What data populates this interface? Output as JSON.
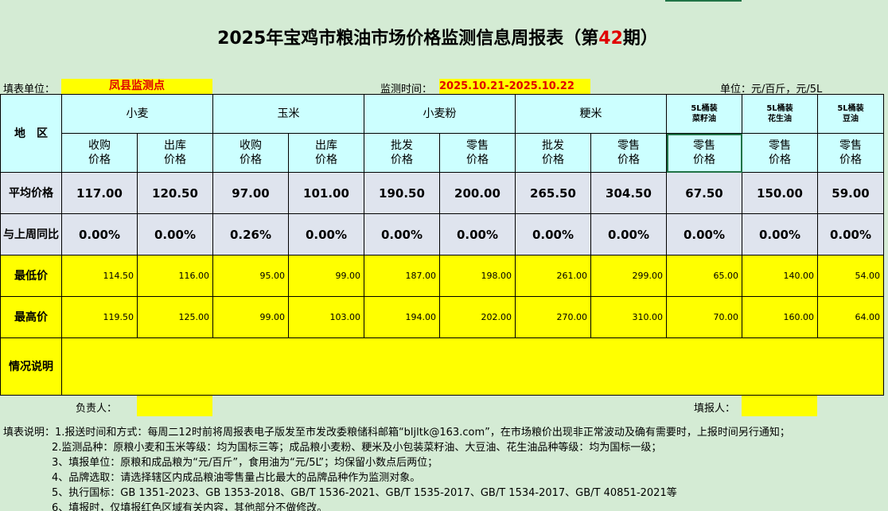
{
  "title": {
    "prefix": "2025年宝鸡市粮油市场价格监测信息周报表（第",
    "issue": "42",
    "suffix": "期）"
  },
  "info": {
    "unit_label": "填表单位：",
    "unit": "凤县监测点",
    "time_label": "监测时间：",
    "time": "2025.10.21-2025.10.22",
    "measure": "单位：元/百斤，元/5L"
  },
  "table": {
    "region_header": "地　区",
    "groups": [
      "小麦",
      "玉米",
      "小麦粉",
      "粳米",
      "5L桶装\n菜籽油",
      "5L桶装\n花生油",
      "5L桶装\n豆油"
    ],
    "subheaders": [
      "收购\n价格",
      "出库\n价格",
      "收购\n价格",
      "出库\n价格",
      "批发\n价格",
      "零售\n价格",
      "批发\n价格",
      "零售\n价格",
      "零售\n价格",
      "零售\n价格",
      "零售\n价格"
    ],
    "rows": [
      {
        "label": "平均价格",
        "cells": [
          "117.00",
          "120.50",
          "97.00",
          "101.00",
          "190.50",
          "200.00",
          "265.50",
          "304.50",
          "67.50",
          "150.00",
          "59.00"
        ]
      },
      {
        "label": "与上周同比",
        "cells": [
          "0.00%",
          "0.00%",
          "0.26%",
          "0.00%",
          "0.00%",
          "0.00%",
          "0.00%",
          "0.00%",
          "0.00%",
          "0.00%",
          "0.00%"
        ]
      },
      {
        "label": "最低价",
        "cells": [
          "114.50",
          "116.00",
          "95.00",
          "99.00",
          "187.00",
          "198.00",
          "261.00",
          "299.00",
          "65.00",
          "140.00",
          "54.00"
        ]
      },
      {
        "label": "最高价",
        "cells": [
          "119.50",
          "125.00",
          "99.00",
          "103.00",
          "194.00",
          "202.00",
          "270.00",
          "310.00",
          "70.00",
          "160.00",
          "64.00"
        ]
      }
    ],
    "remark_label": "情况说明"
  },
  "footer": {
    "responsible": "负责人：",
    "filler": "填报人："
  },
  "notes": [
    "填表说明：1.报送时间和方式：每周二12时前将周报表电子版发至市发改委粮储科邮箱“bljltk@163.com”，在市场粮价出现非正常波动及确有需要时，上报时间另行通知；",
    "2.监测品种：原粮小麦和玉米等级：均为国标三等；成品粮小麦粉、粳米及小包装菜籽油、大豆油、花生油品种等级：均为国标一级；",
    "3、填报单位：原粮和成品粮为“元/百斤”，食用油为“元/5L”；均保留小数点后两位；",
    "4、品牌选取：请选择辖区内成品粮油零售量占比最大的品牌品种作为监测对象。",
    "5、执行国标：GB 1351-2023、GB 1353-2018、GB/T 1536-2021、GB/T 1535-2017、GB/T 1534-2017、GB/T 40851-2021等",
    "6、填报时，仅填报红色区域有关内容，其他部分不做修改。"
  ]
}
